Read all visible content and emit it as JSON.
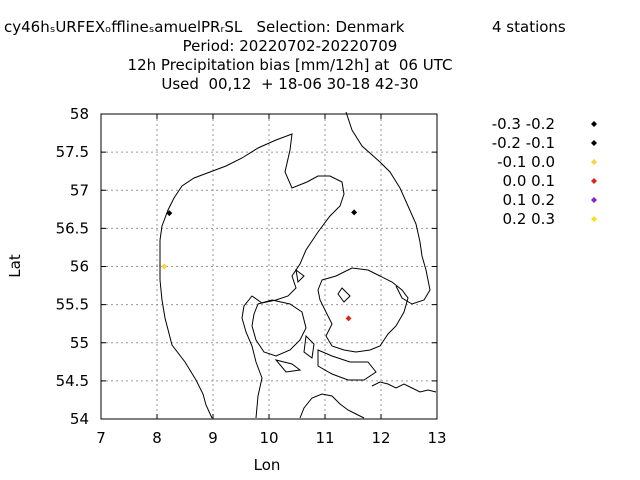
{
  "title": {
    "line1_head": "cy46hₛURFEXₒfflineₛamuelPRᵣSL   Selection: Denmark",
    "line1_stations": "4 stations",
    "line2": "Period: 20220702-20220709",
    "line3": "12h Precipitation bias [mm/12h] at  06 UTC",
    "line4": "Used  00,12  + 18-06 30-18 42-30"
  },
  "axes": {
    "xlabel": "Lon",
    "ylabel": "Lat",
    "xlim": [
      7,
      13
    ],
    "ylim": [
      54,
      58
    ],
    "xticks": [
      "7",
      "8",
      "9",
      "10",
      "11",
      "12",
      "13"
    ],
    "yticks": [
      "54",
      "54.5",
      "55",
      "55.5",
      "56",
      "56.5",
      "57",
      "57.5",
      "58"
    ],
    "grid": true
  },
  "legend": {
    "placement": "right",
    "entries": [
      {
        "label": "-0.3 -0.2",
        "color": "#000000"
      },
      {
        "label": "-0.2 -0.1",
        "color": "#000000"
      },
      {
        "label": "-0.1 0.0",
        "color": "#f5d442"
      },
      {
        "label": "0.0 0.1",
        "color": "#d62a1e"
      },
      {
        "label": "0.1 0.2",
        "color": "#8a1fd0"
      },
      {
        "label": "0.2 0.3",
        "color": "#f5e020"
      }
    ]
  },
  "stations": [
    {
      "lon": 8.22,
      "lat": 56.7,
      "color": "#000000"
    },
    {
      "lon": 11.52,
      "lat": 56.71,
      "color": "#000000"
    },
    {
      "lon": 8.13,
      "lat": 56.0,
      "color": "#f5d442"
    },
    {
      "lon": 11.42,
      "lat": 55.32,
      "color": "#d62a1e"
    }
  ],
  "colors": {
    "coastline": "#000000",
    "grid": "#999999"
  }
}
